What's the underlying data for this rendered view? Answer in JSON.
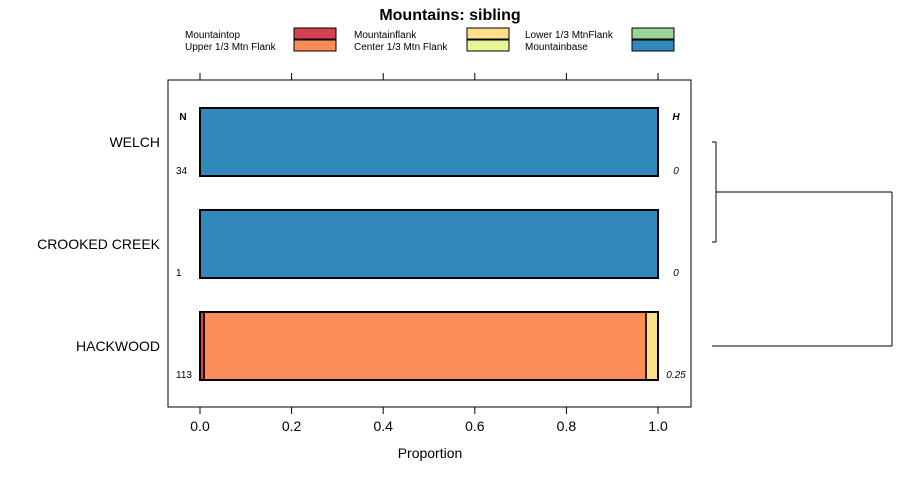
{
  "chart_data": {
    "type": "bar",
    "orientation": "horizontal",
    "stacked": true,
    "title": "Mountains: sibling",
    "xlabel": "Proportion",
    "ylabel": "",
    "xlim": [
      -0.07,
      1.07
    ],
    "x_ticks": [
      0.0,
      0.2,
      0.4,
      0.6,
      0.8,
      1.0
    ],
    "x_tick_labels": [
      "0.0",
      "0.2",
      "0.4",
      "0.6",
      "0.8",
      "1.0"
    ],
    "column_headers": {
      "n": "N",
      "h": "H"
    },
    "legend": [
      {
        "label": "Mountaintop",
        "color": "#d7404e"
      },
      {
        "label": "Upper 1/3 Mtn Flank",
        "color": "#fc8d59"
      },
      {
        "label": "Mountainflank",
        "color": "#fee08b"
      },
      {
        "label": "Center 1/3 Mtn Flank",
        "color": "#e6f598"
      },
      {
        "label": "Lower 1/3 MtnFlank",
        "color": "#99d594"
      },
      {
        "label": "Mountainbase",
        "color": "#3288bd"
      }
    ],
    "categories": [
      "WELCH",
      "CROOKED CREEK",
      "HACKWOOD"
    ],
    "n_values": [
      "34",
      "1",
      "113"
    ],
    "h_values": [
      "0",
      "0",
      "0.25"
    ],
    "series": [
      {
        "name": "Mountaintop",
        "values": [
          0,
          0,
          0.009
        ]
      },
      {
        "name": "Upper 1/3 Mtn Flank",
        "values": [
          0,
          0,
          0.965
        ]
      },
      {
        "name": "Mountainflank",
        "values": [
          0,
          0,
          0.026
        ]
      },
      {
        "name": "Center 1/3 Mtn Flank",
        "values": [
          0,
          0,
          0
        ]
      },
      {
        "name": "Lower 1/3 MtnFlank",
        "values": [
          0,
          0,
          0
        ]
      },
      {
        "name": "Mountainbase",
        "values": [
          1.0,
          1.0,
          0
        ]
      }
    ],
    "dendrogram": {
      "merges": [
        [
          "WELCH",
          "CROOKED CREEK"
        ],
        [
          "WELCH+CROOKED CREEK",
          "HACKWOOD"
        ]
      ]
    }
  }
}
